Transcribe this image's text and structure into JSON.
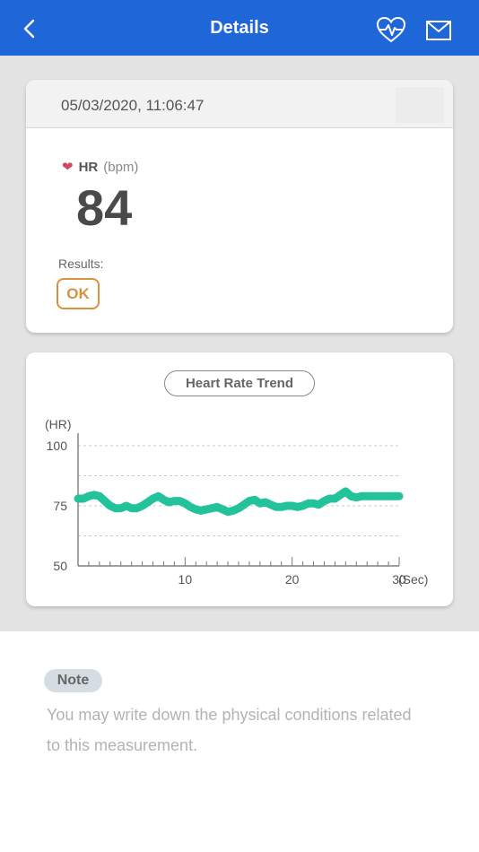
{
  "header": {
    "title": "Details",
    "back_icon": "chevron-left-icon",
    "heart_icon": "heart-pulse-icon",
    "mail_icon": "mail-icon"
  },
  "measurement": {
    "datetime": "05/03/2020, 11:06:47",
    "hr_label": "HR",
    "hr_unit": "(bpm)",
    "hr_value": "84",
    "results_label": "Results:",
    "result": "OK"
  },
  "trend": {
    "title": "Heart Rate Trend",
    "chart_data": {
      "type": "line",
      "ylabel": "(HR)",
      "xlabel": "(Sec)",
      "ylim": [
        50,
        100
      ],
      "xlim": [
        0,
        30
      ],
      "yticks": [
        100,
        75,
        50
      ],
      "xticks": [
        10,
        20,
        30
      ],
      "series": [
        {
          "x": [
            0,
            0.5,
            1,
            1.5,
            2,
            2.5,
            3,
            3.5,
            4,
            4.5,
            5,
            5.5,
            6,
            6.5,
            7,
            7.5,
            8,
            8.5,
            9,
            9.5,
            10,
            10.5,
            11,
            11.5,
            12,
            12.5,
            13,
            13.5,
            14,
            14.5,
            15,
            15.5,
            16,
            16.5,
            17,
            17.5,
            18,
            18.5,
            19,
            19.5,
            20,
            20.5,
            21,
            21.5,
            22,
            22.5,
            23,
            23.5,
            24,
            24.5,
            25,
            25.5,
            26,
            26.5,
            27,
            27.5,
            28,
            28.5,
            29,
            29.5,
            30
          ],
          "values": [
            78,
            78,
            79,
            79.5,
            79,
            77,
            75,
            74,
            74,
            75,
            74,
            74,
            75,
            76.5,
            78,
            79,
            77.5,
            76.5,
            77,
            77,
            76,
            74.5,
            73.5,
            73,
            73.5,
            74,
            74.5,
            73.5,
            72.5,
            73,
            74,
            75.5,
            77,
            77.5,
            76,
            76.5,
            75.5,
            74.5,
            74.5,
            75,
            75,
            74.5,
            75,
            76,
            76,
            75.5,
            77,
            78,
            78,
            79.5,
            81,
            79,
            78.5,
            79,
            79,
            79,
            79,
            79,
            79,
            79,
            79
          ]
        }
      ]
    }
  },
  "note": {
    "label": "Note",
    "placeholder": "You may write down the physical conditions related to this measurement."
  },
  "colors": {
    "accent": "#1f66d9",
    "line": "#22c39a",
    "ok": "#d8913e",
    "heart": "#d0495e"
  }
}
